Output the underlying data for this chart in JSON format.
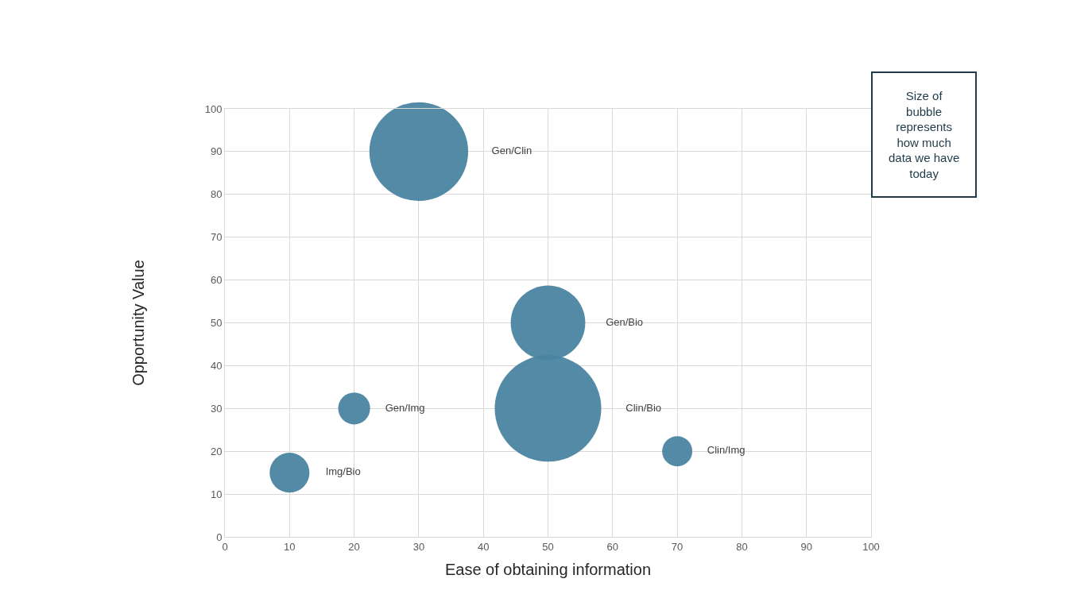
{
  "chart_data": {
    "type": "bubble",
    "xlabel": "Ease of obtaining information",
    "ylabel": "Opportunity Value",
    "series": [
      {
        "name": "Gen/Clin",
        "x": [
          30
        ],
        "values": [
          90
        ],
        "sizes": [
          0.86
        ],
        "color": "#4a84a0"
      },
      {
        "name": "Gen/Bio",
        "x": [
          50
        ],
        "values": [
          50
        ],
        "sizes": [
          0.49
        ],
        "color": "#4a84a0"
      },
      {
        "name": "Clin/Bio",
        "x": [
          50
        ],
        "values": [
          30
        ],
        "sizes": [
          1
        ],
        "color": "#4a84a0"
      },
      {
        "name": "Gen/Img",
        "x": [
          20
        ],
        "values": [
          30
        ],
        "sizes": [
          0.09
        ],
        "color": "#4a84a0"
      },
      {
        "name": "Img/Bio",
        "x": [
          10
        ],
        "values": [
          15
        ],
        "sizes": [
          0.14
        ],
        "color": "#4a84a0"
      },
      {
        "name": "Clin/Img",
        "x": [
          70
        ],
        "values": [
          20
        ],
        "sizes": [
          0.08
        ],
        "color": "#4a84a0"
      }
    ],
    "xlim": [
      0,
      100
    ],
    "xticks": [
      0,
      10,
      20,
      30,
      40,
      50,
      60,
      70,
      80,
      90,
      100
    ],
    "ylim": [
      0,
      100
    ],
    "yticks": [
      0,
      10,
      20,
      30,
      40,
      50,
      60,
      70,
      80,
      90,
      100
    ],
    "grid": true,
    "annotations": [
      "Size of\nbubble\nrepresents\nhow much\ndata we have\ntoday"
    ]
  }
}
